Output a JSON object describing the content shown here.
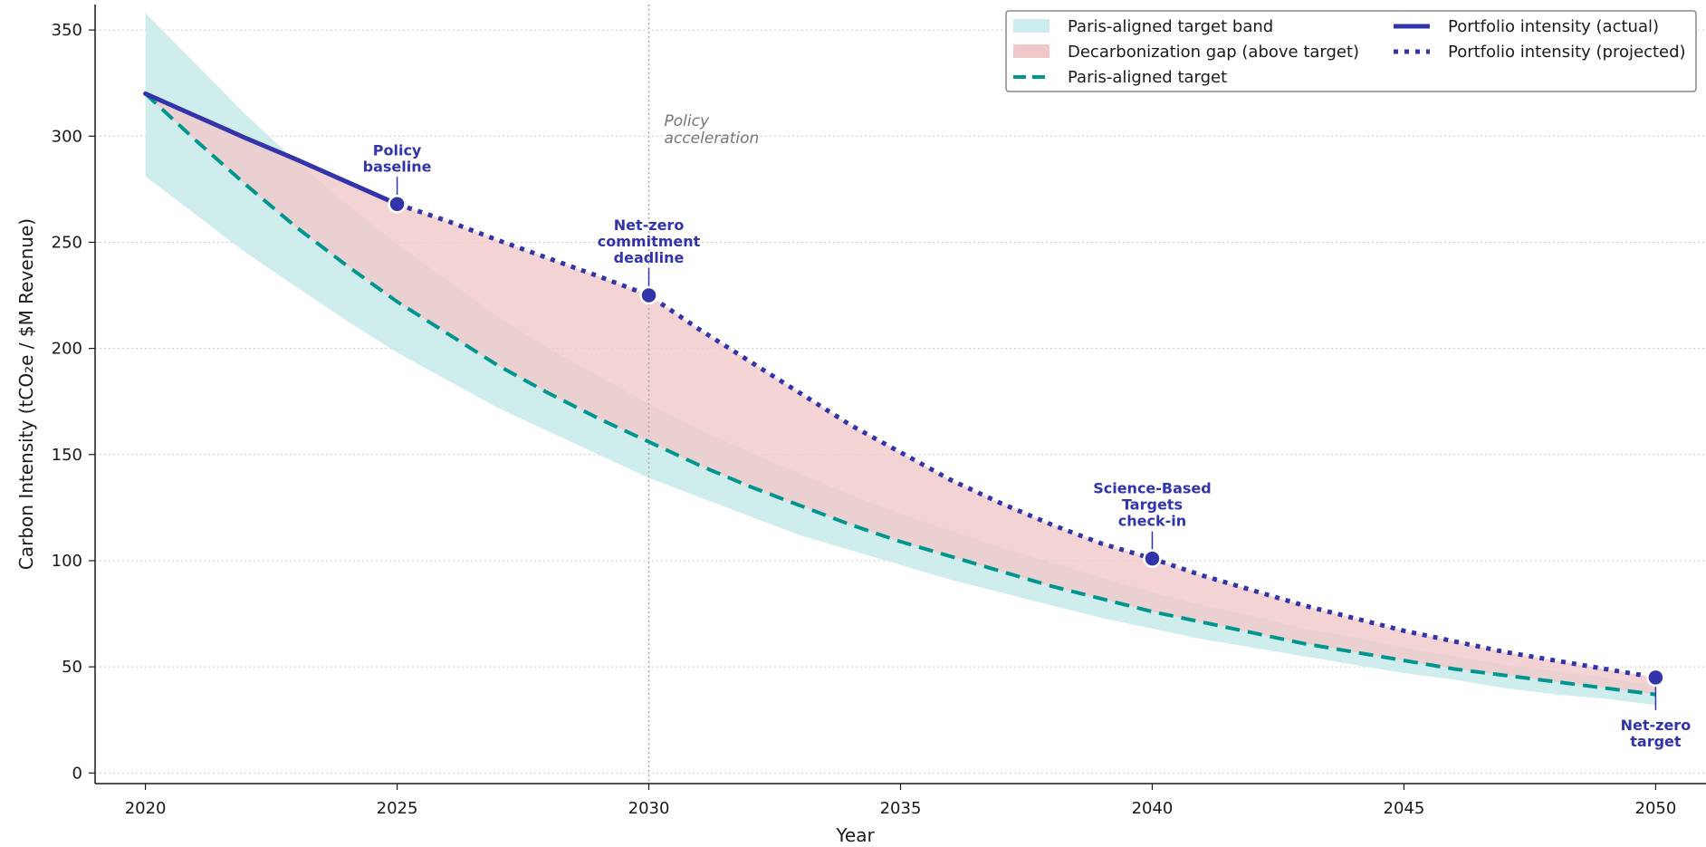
{
  "chart_data": {
    "type": "line",
    "title": "",
    "xlabel": "Year",
    "ylabel": "Carbon Intensity (tCO₂e / $M Revenue)",
    "xlim": [
      2019,
      2051
    ],
    "ylim": [
      -5,
      362
    ],
    "x_ticks": [
      2020,
      2025,
      2030,
      2035,
      2040,
      2045,
      2050
    ],
    "y_ticks": [
      0,
      50,
      100,
      150,
      200,
      250,
      300,
      350
    ],
    "grid": "horizontal dotted",
    "legend_position": "top-right",
    "colors": {
      "actual": "#3333aa",
      "projected": "#3333aa",
      "target": "#00968f",
      "band": "#cdeced",
      "gap": "#f0c8c8",
      "vline": "#aaaaaa"
    },
    "legend": [
      {
        "key": "band",
        "label": "Paris-aligned target band"
      },
      {
        "key": "gap",
        "label": "Decarbonization gap (above target)"
      },
      {
        "key": "target",
        "label": "Paris-aligned target"
      },
      {
        "key": "actual",
        "label": "Portfolio intensity (actual)"
      },
      {
        "key": "projected",
        "label": "Portfolio intensity (projected)"
      }
    ],
    "series": [
      {
        "name": "Portfolio intensity (actual)",
        "key": "actual",
        "style": "solid",
        "x": [
          2020,
          2021,
          2022,
          2023,
          2024,
          2025
        ],
        "y": [
          320,
          309.5,
          299,
          289,
          278.5,
          268
        ]
      },
      {
        "name": "Portfolio intensity (projected)",
        "key": "projected",
        "style": "dotted",
        "x": [
          2025,
          2026,
          2027,
          2028,
          2029,
          2030,
          2031,
          2032,
          2033,
          2034,
          2035,
          2036,
          2037,
          2038,
          2039,
          2040,
          2041,
          2042,
          2043,
          2044,
          2045,
          2046,
          2047,
          2048,
          2049,
          2050
        ],
        "y": [
          268,
          260,
          251,
          242.5,
          234,
          225,
          209,
          194,
          179,
          164,
          151,
          138,
          127,
          117,
          108,
          101,
          93,
          86,
          79,
          73,
          67,
          62,
          57,
          53,
          49,
          45
        ]
      },
      {
        "name": "Paris-aligned target",
        "key": "target",
        "style": "dashed",
        "x": [
          2020,
          2021,
          2022,
          2023,
          2024,
          2025,
          2026,
          2027,
          2028,
          2029,
          2030,
          2031,
          2032,
          2033,
          2034,
          2035,
          2036,
          2037,
          2038,
          2039,
          2040,
          2041,
          2042,
          2043,
          2044,
          2045,
          2046,
          2047,
          2048,
          2049,
          2050
        ],
        "y": [
          320,
          298,
          277,
          257,
          239,
          222,
          207,
          192,
          179,
          167,
          156,
          145,
          135,
          126,
          117,
          109,
          102,
          95,
          88,
          82,
          76,
          71,
          66,
          61,
          57,
          53,
          49,
          46,
          43,
          40,
          37
        ]
      },
      {
        "name": "Paris-aligned target band (upper)",
        "key": "band_upper",
        "x": [
          2020,
          2021,
          2022,
          2023,
          2024,
          2025,
          2026,
          2027,
          2028,
          2029,
          2030,
          2031,
          2032,
          2033,
          2034,
          2035,
          2036,
          2037,
          2038,
          2039,
          2040,
          2041,
          2042,
          2043,
          2044,
          2045,
          2046,
          2047,
          2048,
          2049,
          2050
        ],
        "y": [
          358,
          334,
          310,
          288,
          268,
          249,
          232,
          215,
          200,
          187,
          174,
          162,
          151,
          141,
          131,
          122,
          114,
          106,
          99,
          92,
          85,
          79,
          74,
          68,
          64,
          59,
          55,
          51,
          48,
          45,
          41
        ]
      },
      {
        "name": "Paris-aligned target band (lower)",
        "key": "band_lower",
        "x": [
          2020,
          2021,
          2022,
          2023,
          2024,
          2025,
          2026,
          2027,
          2028,
          2029,
          2030,
          2031,
          2032,
          2033,
          2034,
          2035,
          2036,
          2037,
          2038,
          2039,
          2040,
          2041,
          2042,
          2043,
          2044,
          2045,
          2046,
          2047,
          2048,
          2049,
          2050
        ],
        "y": [
          281,
          263,
          245,
          229,
          213,
          198,
          185,
          172,
          161,
          150,
          139,
          130,
          121,
          112,
          105,
          98,
          91,
          85,
          79,
          73,
          68,
          63,
          59,
          55,
          51,
          47,
          44,
          40,
          37,
          35,
          32
        ]
      }
    ],
    "vertical_line": {
      "x": 2030,
      "label": "Policy\nacceleration"
    },
    "annotations": [
      {
        "x": 2025,
        "y": 268,
        "text": "Policy\nbaseline",
        "position": "above"
      },
      {
        "x": 2030,
        "y": 225,
        "text": "Net-zero\ncommitment\ndeadline",
        "position": "above"
      },
      {
        "x": 2040,
        "y": 101,
        "text": "Science-Based\nTargets\ncheck-in",
        "position": "above"
      },
      {
        "x": 2050,
        "y": 45,
        "text": "Net-zero\ntarget",
        "position": "below"
      }
    ]
  }
}
